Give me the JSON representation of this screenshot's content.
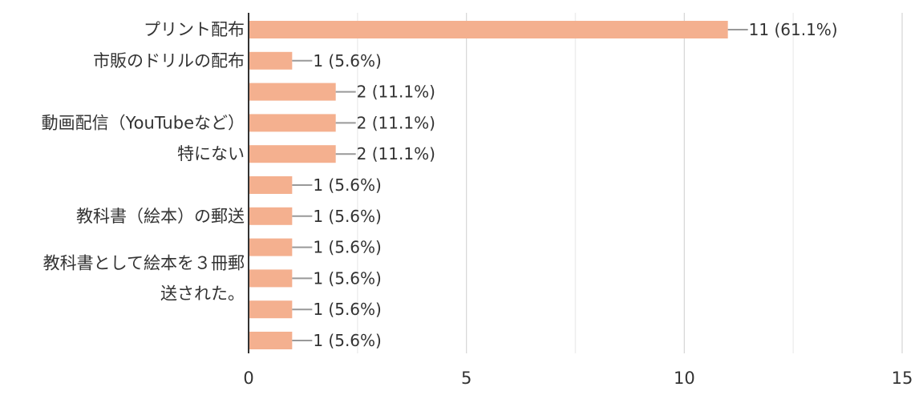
{
  "chart_data": {
    "type": "bar",
    "orientation": "horizontal",
    "grid": true,
    "xlim": [
      0,
      15
    ],
    "x_ticks": [
      0,
      5,
      10,
      15
    ],
    "bar_color": "#f4b08f",
    "leader_color": "#999999",
    "categories": [
      "プリント配布",
      "市販のドリルの配布",
      "",
      "動画配信（YouTubeなど）",
      "特にない",
      "",
      "教科書（絵本）の郵送",
      "",
      "教科書として絵本を３冊郵送された。",
      "",
      ""
    ],
    "visible_labels": [
      {
        "row": 0,
        "lines": [
          "プリント配布"
        ]
      },
      {
        "row": 1,
        "lines": [
          "市販のドリルの配布"
        ]
      },
      {
        "row": 3,
        "lines": [
          "動画配信（YouTubeなど）"
        ]
      },
      {
        "row": 4,
        "lines": [
          "特にない"
        ]
      },
      {
        "row": 6,
        "lines": [
          "教科書（絵本）の郵送"
        ]
      },
      {
        "row": 8,
        "lines": [
          "教科書として絵本を３冊郵",
          "送された。"
        ]
      }
    ],
    "values": [
      11,
      1,
      2,
      2,
      2,
      1,
      1,
      1,
      1,
      1,
      1
    ],
    "data_labels": [
      "11 (61.1%)",
      "1 (5.6%)",
      "2 (11.1%)",
      "2 (11.1%)",
      "2 (11.1%)",
      "1 (5.6%)",
      "1 (5.6%)",
      "1 (5.6%)",
      "1 (5.6%)",
      "1 (5.6%)",
      "1 (5.6%)"
    ]
  }
}
